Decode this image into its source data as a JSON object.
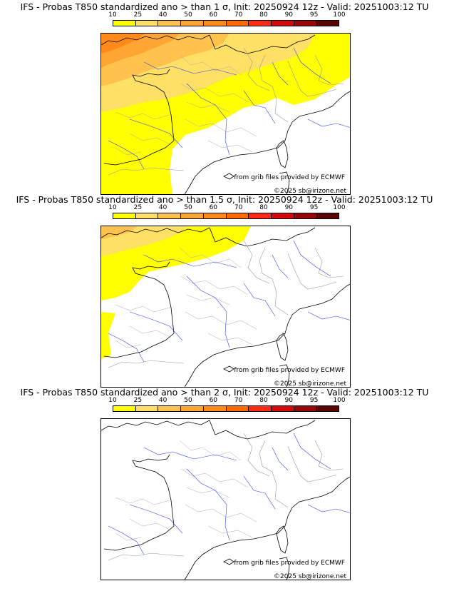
{
  "legend": {
    "ticks": [
      "10",
      "25",
      "40",
      "50",
      "60",
      "70",
      "80",
      "90",
      "95",
      "100"
    ],
    "colors": [
      "#ffff00",
      "#ffe066",
      "#ffc24d",
      "#ffa533",
      "#ff8a1a",
      "#ff6a00",
      "#ff2a14",
      "#d20a0a",
      "#980808",
      "#5a0404"
    ]
  },
  "panels": [
    {
      "title": "IFS - Probas T850  standardized ano > than 1 σ, Init: 20250924 12z - Valid: 20251003:12 TU",
      "credit_source": "from grib files provided by ECMWF",
      "credit_copy": "©2025 sb@irizone.net"
    },
    {
      "title": "IFS - Probas T850  standardized ano > than 1.5 σ, Init: 20250924 12z - Valid: 20251003:12 TU",
      "credit_source": "from grib files provided by ECMWF",
      "credit_copy": "©2025 sb@irizone.net"
    },
    {
      "title": "IFS - Probas T850  standardized ano > than 2 σ, Init: 20250924 12z - Valid: 20251003:12 TU",
      "credit_source": "from grib files provided by ECMWF",
      "credit_copy": "©2025 sb@irizone.net"
    }
  ]
}
